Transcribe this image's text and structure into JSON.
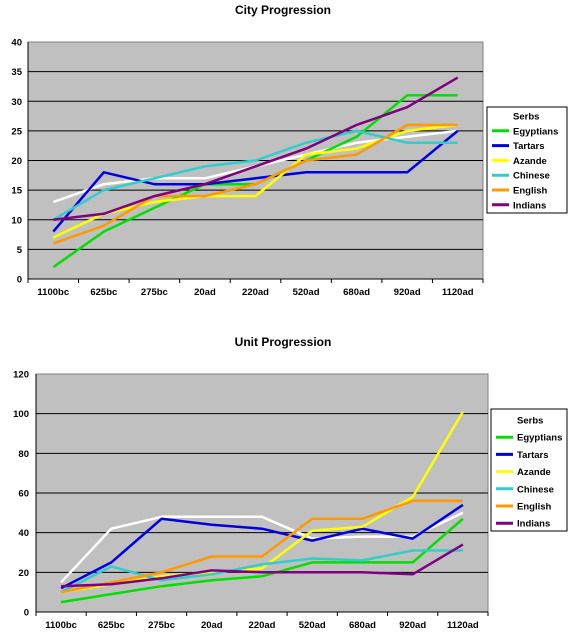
{
  "colors": {
    "plot_bg": "#c0c0c0",
    "grid": "#000000",
    "Serbs": "#ffffff",
    "Egyptians": "#00e000",
    "Tartars": "#0000e0",
    "Azande": "#ffff00",
    "Chinese": "#33cccc",
    "English": "#ff9900",
    "Indians": "#800080"
  },
  "chart_data": [
    {
      "type": "line",
      "title": "City Progression",
      "xlabel": "",
      "ylabel": "",
      "categories": [
        "1100bc",
        "625bc",
        "275bc",
        "20ad",
        "220ad",
        "520ad",
        "680ad",
        "920ad",
        "1120ad"
      ],
      "ylim": [
        0,
        40
      ],
      "yticks": [
        0,
        5,
        10,
        15,
        20,
        25,
        30,
        35,
        40
      ],
      "grid": true,
      "legend": "right",
      "series": [
        {
          "name": "Serbs",
          "values": [
            13,
            16,
            17,
            17,
            19,
            21,
            23,
            24,
            25
          ]
        },
        {
          "name": "Egyptians",
          "values": [
            2,
            8,
            12,
            16,
            16,
            20,
            24,
            31,
            31
          ]
        },
        {
          "name": "Tartars",
          "values": [
            8,
            18,
            16,
            16,
            17,
            18,
            18,
            18,
            25
          ]
        },
        {
          "name": "Azande",
          "values": [
            7,
            11,
            13,
            14,
            14,
            21,
            22,
            25,
            26
          ]
        },
        {
          "name": "Chinese",
          "values": [
            10,
            15,
            17,
            19,
            20,
            23,
            25,
            23,
            23
          ]
        },
        {
          "name": "English",
          "values": [
            6,
            9,
            14,
            14,
            16,
            20,
            21,
            26,
            26
          ]
        },
        {
          "name": "Indians",
          "values": [
            10,
            11,
            14,
            16,
            19,
            22,
            26,
            29,
            34
          ]
        }
      ]
    },
    {
      "type": "line",
      "title": "Unit Progression",
      "xlabel": "",
      "ylabel": "",
      "categories": [
        "1100bc",
        "625bc",
        "275bc",
        "20ad",
        "220ad",
        "520ad",
        "680ad",
        "920ad",
        "1120ad"
      ],
      "ylim": [
        0,
        120
      ],
      "yticks": [
        0,
        20,
        40,
        60,
        80,
        100,
        120
      ],
      "grid": true,
      "legend": "right",
      "series": [
        {
          "name": "Serbs",
          "values": [
            15,
            42,
            48,
            48,
            48,
            37,
            38,
            38,
            50
          ]
        },
        {
          "name": "Egyptians",
          "values": [
            5,
            9,
            13,
            16,
            18,
            25,
            25,
            25,
            47
          ]
        },
        {
          "name": "Tartars",
          "values": [
            12,
            25,
            47,
            44,
            42,
            36,
            42,
            37,
            54
          ]
        },
        {
          "name": "Azande",
          "values": [
            10,
            14,
            18,
            20,
            22,
            41,
            43,
            58,
            101
          ]
        },
        {
          "name": "Chinese",
          "values": [
            10,
            23,
            16,
            19,
            24,
            27,
            26,
            31,
            31
          ]
        },
        {
          "name": "English",
          "values": [
            10,
            15,
            20,
            28,
            28,
            47,
            47,
            56,
            56
          ]
        },
        {
          "name": "Indians",
          "values": [
            13,
            14,
            17,
            21,
            20,
            20,
            20,
            19,
            34
          ]
        }
      ]
    }
  ]
}
